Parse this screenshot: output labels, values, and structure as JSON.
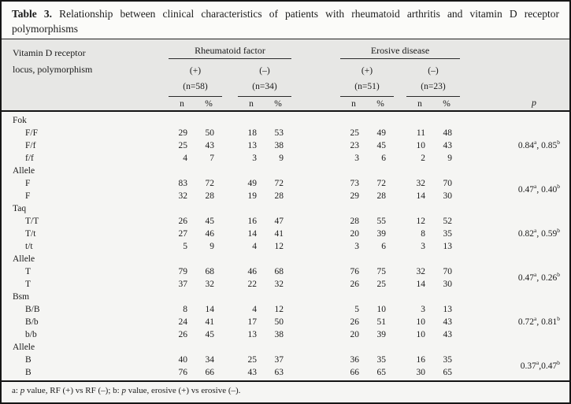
{
  "title": {
    "bold": "Table 3.",
    "rest": " Relationship between clinical characteristics of patients with rheumatoid arthritis and vitamin D receptor polymorphisms"
  },
  "header": {
    "row_label_line1": "Vitamin D receptor",
    "row_label_line2": "locus, polymorphism",
    "groups": [
      {
        "label": "Rheumatoid factor",
        "cols": [
          {
            "sign": "(+)",
            "n": "(n=58)"
          },
          {
            "sign": "(–)",
            "n": "(n=34)"
          }
        ]
      },
      {
        "label": "Erosive disease",
        "cols": [
          {
            "sign": "(+)",
            "n": "(n=51)"
          },
          {
            "sign": "(–)",
            "n": "(n=23)"
          }
        ]
      }
    ],
    "sub_n": "n",
    "sub_pct": "%",
    "p_label": "p"
  },
  "sections": [
    {
      "name": "Fok",
      "rows": [
        {
          "label": "F/F",
          "values": [
            29,
            50,
            18,
            53,
            25,
            49,
            11,
            48
          ]
        },
        {
          "label": "F/f",
          "values": [
            25,
            43,
            13,
            38,
            23,
            45,
            10,
            43
          ]
        },
        {
          "label": "f/f",
          "values": [
            4,
            7,
            3,
            9,
            3,
            6,
            2,
            9
          ]
        }
      ],
      "p": {
        "a": "0.84",
        "b": "0.85",
        "sep": ", "
      }
    },
    {
      "name": "Allele",
      "rows": [
        {
          "label": "F",
          "values": [
            83,
            72,
            49,
            72,
            73,
            72,
            32,
            70
          ]
        },
        {
          "label": "F",
          "values": [
            32,
            28,
            19,
            28,
            29,
            28,
            14,
            30
          ]
        }
      ],
      "p": {
        "a": "0.47",
        "b": "0.40",
        "sep": ", "
      }
    },
    {
      "name": "Taq",
      "rows": [
        {
          "label": "T/T",
          "values": [
            26,
            45,
            16,
            47,
            28,
            55,
            12,
            52
          ]
        },
        {
          "label": "T/t",
          "values": [
            27,
            46,
            14,
            41,
            20,
            39,
            8,
            35
          ]
        },
        {
          "label": "t/t",
          "values": [
            5,
            9,
            4,
            12,
            3,
            6,
            3,
            13
          ]
        }
      ],
      "p": {
        "a": "0.82",
        "b": "0.59",
        "sep": ", "
      }
    },
    {
      "name": "Allele",
      "rows": [
        {
          "label": "T",
          "values": [
            79,
            68,
            46,
            68,
            76,
            75,
            32,
            70
          ]
        },
        {
          "label": "T",
          "values": [
            37,
            32,
            22,
            32,
            26,
            25,
            14,
            30
          ]
        }
      ],
      "p": {
        "a": "0.47",
        "b": "0.26",
        "sep": ", "
      }
    },
    {
      "name": "Bsm",
      "rows": [
        {
          "label": "B/B",
          "values": [
            8,
            14,
            4,
            12,
            5,
            10,
            3,
            13
          ]
        },
        {
          "label": "B/b",
          "values": [
            24,
            41,
            17,
            50,
            26,
            51,
            10,
            43
          ]
        },
        {
          "label": "b/b",
          "values": [
            26,
            45,
            13,
            38,
            20,
            39,
            10,
            43
          ]
        }
      ],
      "p": {
        "a": "0.72",
        "b": "0.81",
        "sep": ", "
      }
    },
    {
      "name": "Allele",
      "rows": [
        {
          "label": "B",
          "values": [
            40,
            34,
            25,
            37,
            36,
            35,
            16,
            35
          ]
        },
        {
          "label": "B",
          "values": [
            76,
            66,
            43,
            63,
            66,
            65,
            30,
            65
          ]
        }
      ],
      "p": {
        "a": "0.37",
        "b": "0.47",
        "sep": ","
      }
    }
  ],
  "footnote_parts": [
    {
      "t": "a: "
    },
    {
      "t": "p",
      "italic": true
    },
    {
      "t": " value, RF (+) vs RF (–);  b: "
    },
    {
      "t": "p",
      "italic": true
    },
    {
      "t": " value, erosive (+) vs erosive (–)."
    }
  ]
}
